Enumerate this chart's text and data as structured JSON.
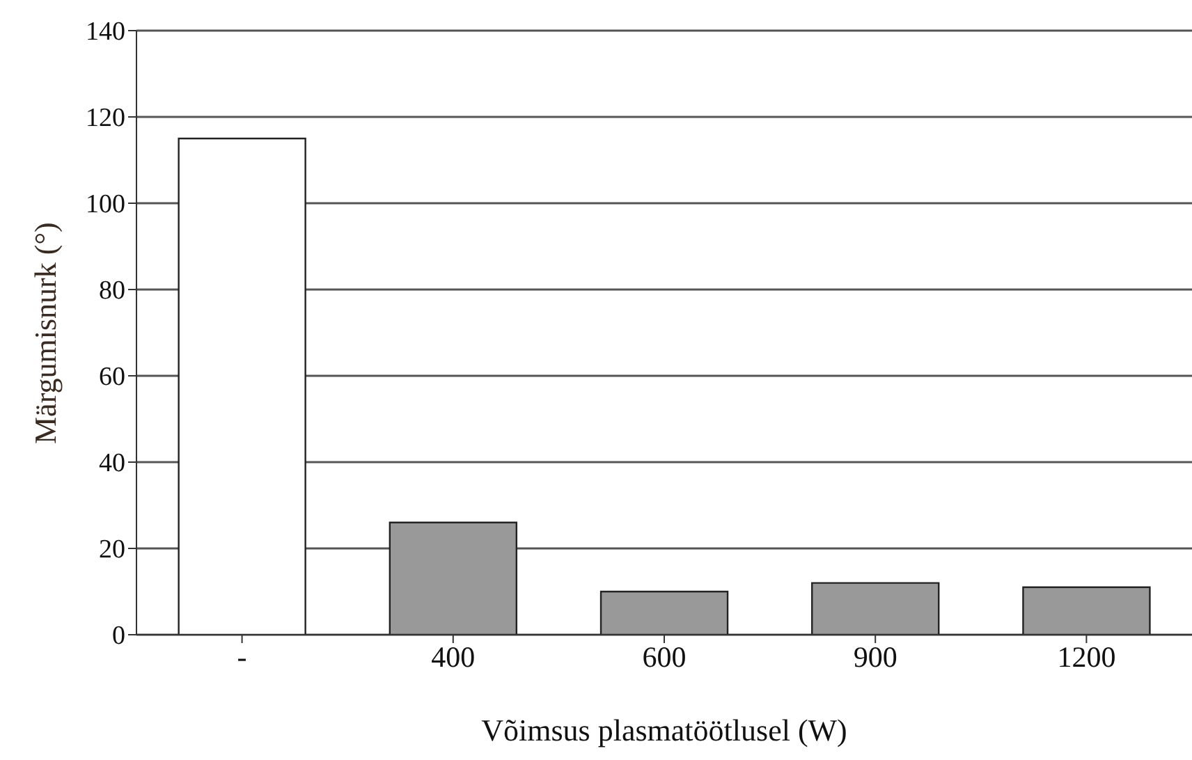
{
  "chart_data": {
    "type": "bar",
    "xlabel": "Võimsus plasmatöötlusel (W)",
    "ylabel": "Märgumisnurk (°)",
    "categories": [
      "-",
      "400",
      "600",
      "900",
      "1200"
    ],
    "values": [
      115,
      26,
      10,
      12,
      11
    ],
    "colors": [
      "#ffffff",
      "#999999",
      "#999999",
      "#999999",
      "#999999"
    ],
    "ylim": [
      0,
      140
    ],
    "yticks": [
      0,
      20,
      40,
      60,
      80,
      100,
      120,
      140
    ],
    "grid": "y"
  }
}
